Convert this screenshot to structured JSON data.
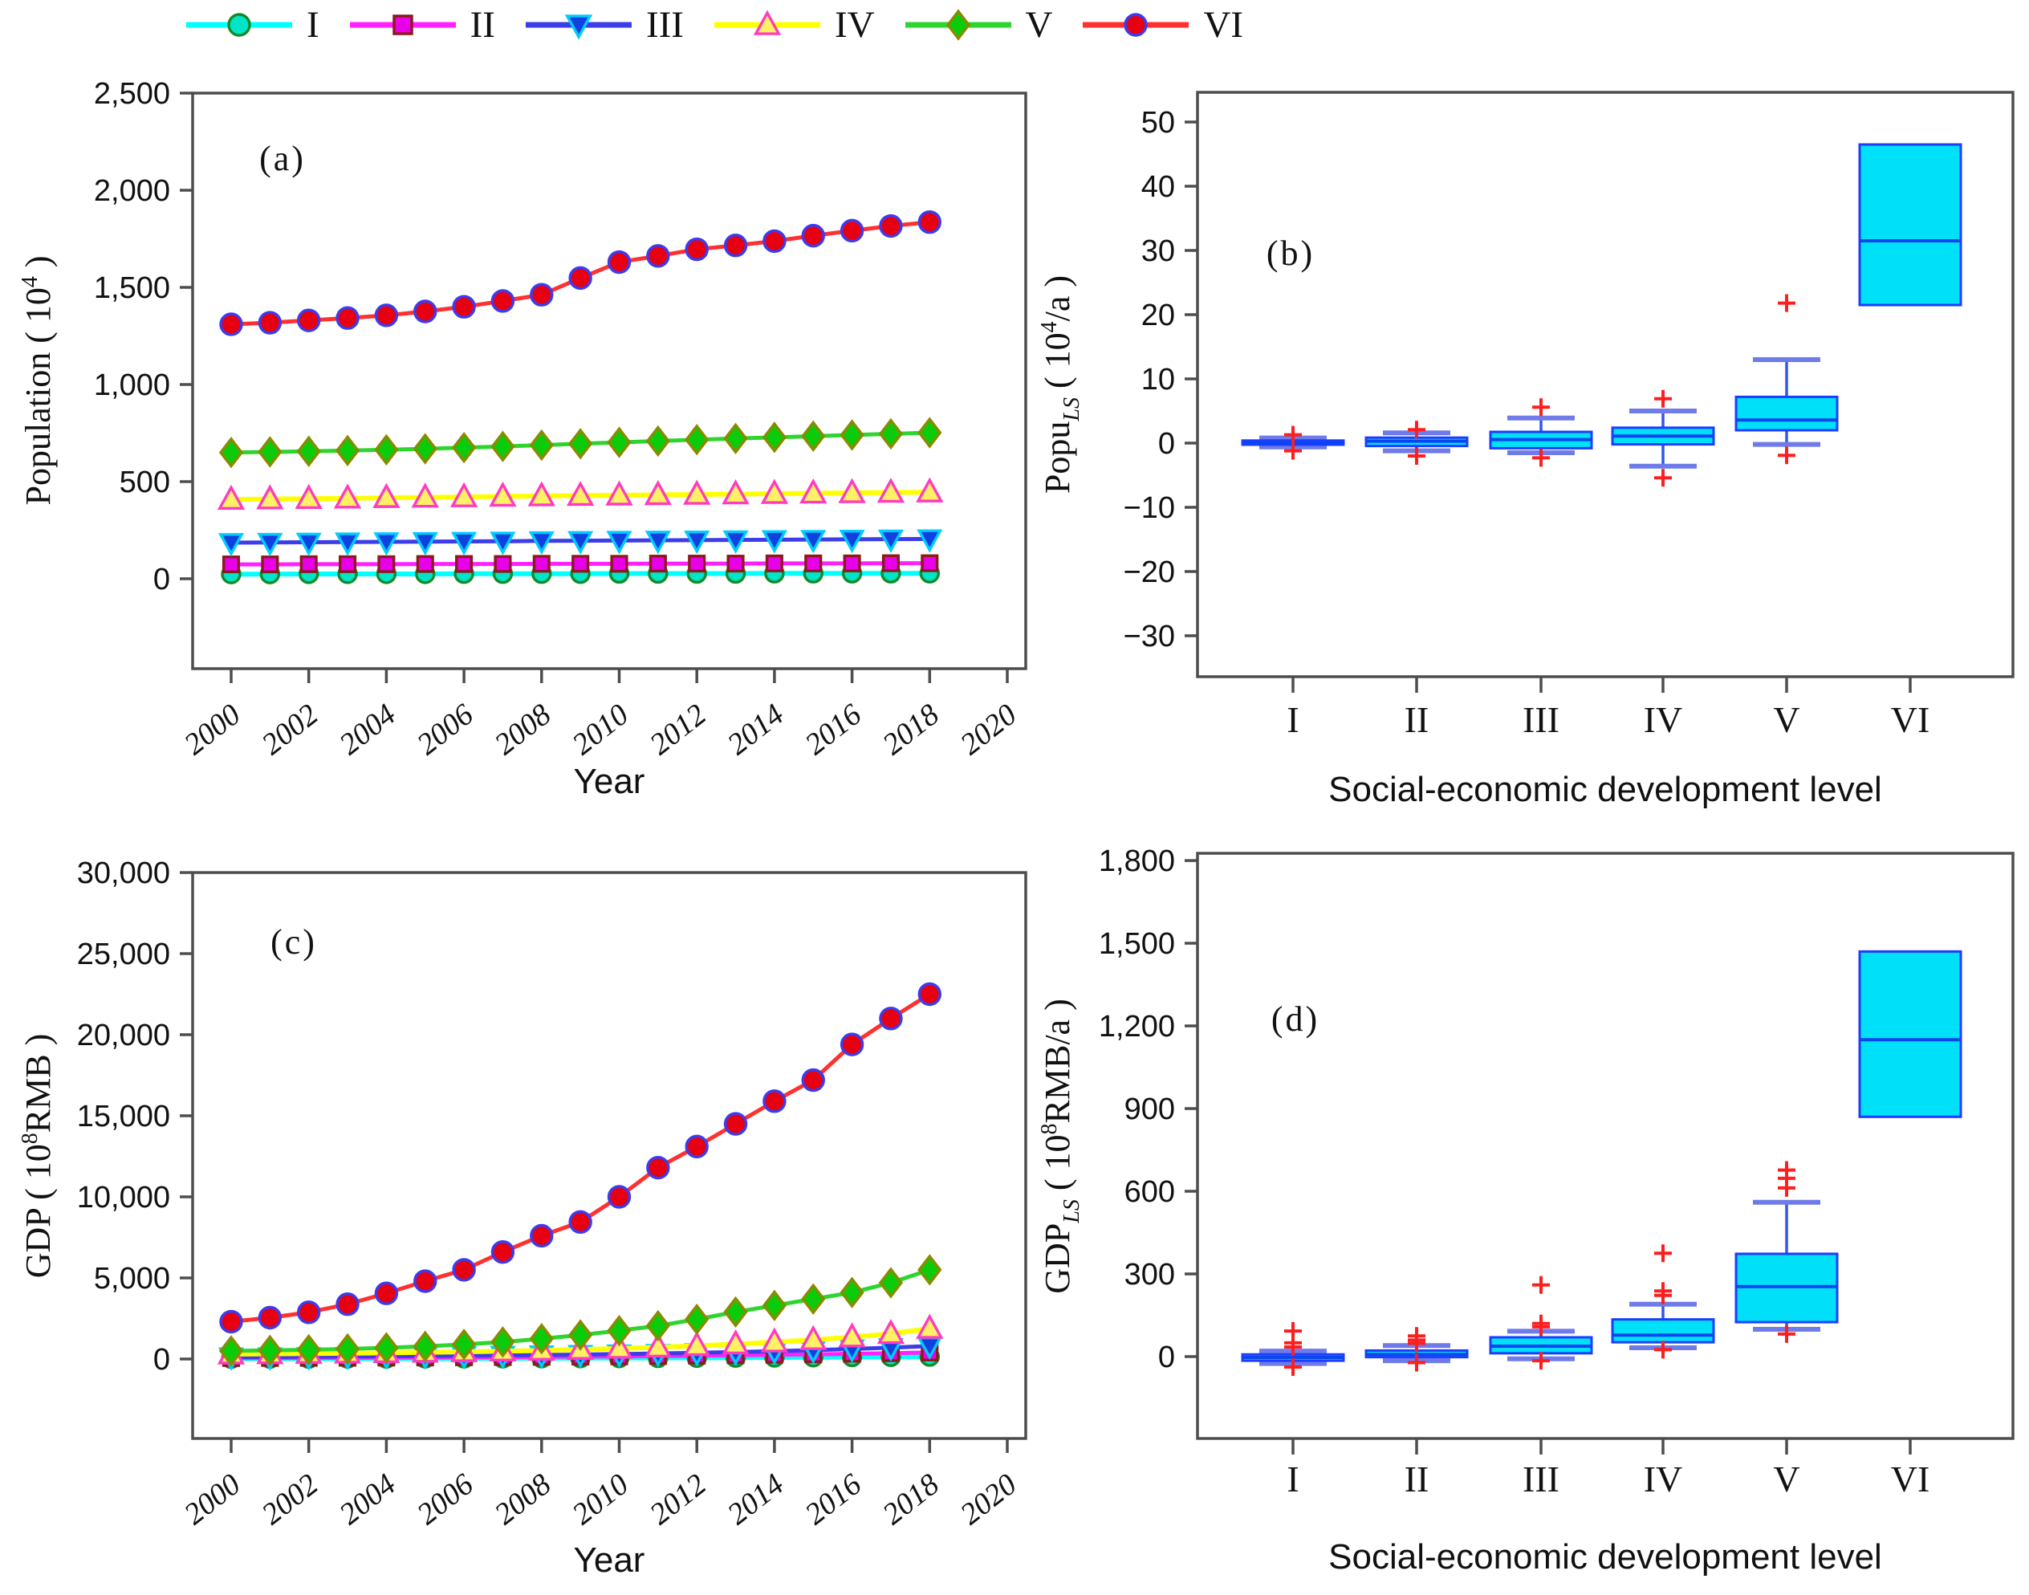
{
  "legend": {
    "items": [
      "I",
      "II",
      "III",
      "IV",
      "V",
      "VI"
    ]
  },
  "colors": {
    "axis": "#4d4d4d",
    "box_fill": "#00e0f8",
    "box_edge": "#1e3cff",
    "box_median": "#0a46f0",
    "whisker": "#3355f0",
    "whisker_cap": "#6e7be8",
    "outlier": "#ff1e1e",
    "series": {
      "I": {
        "line": "#00ffff",
        "fill": "#00e5c8",
        "edge": "#128a28",
        "marker": "circle"
      },
      "II": {
        "line": "#ff22ff",
        "fill": "#e800e8",
        "edge": "#8b1a1a",
        "marker": "square"
      },
      "III": {
        "line": "#3c3ce8",
        "fill": "#1040dd",
        "edge": "#00ccff",
        "marker": "tri-down"
      },
      "IV": {
        "line": "#ffff00",
        "fill": "#fff066",
        "edge": "#ff3bc1",
        "marker": "tri-up"
      },
      "V": {
        "line": "#2fd52f",
        "fill": "#0acc0a",
        "edge": "#8a8a00",
        "marker": "diamond"
      },
      "VI": {
        "line": "#ff3030",
        "fill": "#e60012",
        "edge": "#3c3cee",
        "marker": "circle"
      }
    }
  },
  "chart_data": [
    {
      "id": "a",
      "type": "line",
      "panel_label": "(a)",
      "xlabel": "Year",
      "ylabel": "Population (10⁴)",
      "ylabel_parts": {
        "pre": "Population ( 10",
        "sub": "",
        "mid": "",
        "sup": "4",
        "post": " )"
      },
      "x": [
        2000,
        2001,
        2002,
        2003,
        2004,
        2005,
        2006,
        2007,
        2008,
        2009,
        2010,
        2011,
        2012,
        2013,
        2014,
        2015,
        2016,
        2017,
        2018
      ],
      "xticks": [
        2000,
        2002,
        2004,
        2006,
        2008,
        2010,
        2012,
        2014,
        2016,
        2018,
        2020
      ],
      "xtick_labels": [
        "2000",
        "2002",
        "2004",
        "2006",
        "2008",
        "2010",
        "2012",
        "2014",
        "2016",
        "2018",
        "2020"
      ],
      "yticks": [
        0,
        500,
        1000,
        1500,
        2000,
        2500
      ],
      "ytick_labels": [
        "0",
        "500",
        "1,000",
        "1,500",
        "2,000",
        "2,500"
      ],
      "ylim": [
        -463,
        2500
      ],
      "xlim": [
        2000,
        2020
      ],
      "series": [
        {
          "name": "I",
          "values": [
            24,
            24,
            25,
            25,
            25,
            25,
            26,
            26,
            26,
            26,
            27,
            27,
            27,
            27,
            28,
            28,
            28,
            28,
            28
          ]
        },
        {
          "name": "II",
          "values": [
            74,
            74,
            75,
            75,
            75,
            76,
            76,
            76,
            77,
            77,
            77,
            78,
            78,
            78,
            79,
            79,
            79,
            80,
            80
          ]
        },
        {
          "name": "III",
          "values": [
            186,
            187,
            188,
            189,
            190,
            191,
            192,
            193,
            195,
            196,
            197,
            198,
            199,
            200,
            201,
            202,
            203,
            204,
            205
          ]
        },
        {
          "name": "IV",
          "values": [
            408,
            410,
            412,
            414,
            417,
            419,
            421,
            424,
            426,
            428,
            430,
            432,
            434,
            436,
            438,
            440,
            442,
            444,
            446
          ]
        },
        {
          "name": "V",
          "values": [
            650,
            653,
            656,
            660,
            664,
            669,
            675,
            681,
            688,
            695,
            702,
            709,
            716,
            722,
            728,
            734,
            740,
            746,
            752
          ]
        },
        {
          "name": "VI",
          "values": [
            1310,
            1318,
            1330,
            1342,
            1356,
            1376,
            1400,
            1430,
            1462,
            1548,
            1630,
            1662,
            1696,
            1716,
            1738,
            1766,
            1792,
            1816,
            1836
          ]
        }
      ]
    },
    {
      "id": "b",
      "type": "box",
      "panel_label": "(b)",
      "xlabel": "Social-economic development level",
      "ylabel": "Popuₗₛ (10⁴/a)",
      "ylabel_parts": {
        "pre": "Popu",
        "sub": "LS",
        "mid": " ( 10",
        "sup": "4",
        "post": "/a )"
      },
      "categories": [
        "I",
        "II",
        "III",
        "IV",
        "V",
        "VI"
      ],
      "yticks": [
        -30,
        -20,
        -10,
        0,
        10,
        20,
        30,
        40,
        50
      ],
      "ytick_labels": [
        "−30",
        "−20",
        "−10",
        "0",
        "10",
        "20",
        "30",
        "40",
        "50"
      ],
      "ylim": [
        -36.4,
        54.6
      ],
      "boxes": [
        {
          "category": "I",
          "whislo": -0.6,
          "q1": -0.25,
          "median": 0.05,
          "q3": 0.4,
          "whishi": 0.8,
          "outliers": [
            1.3,
            -1.2
          ]
        },
        {
          "category": "II",
          "whislo": -1.2,
          "q1": -0.45,
          "median": 0.3,
          "q3": 0.85,
          "whishi": 1.6,
          "outliers": [
            2.1,
            -2.0
          ]
        },
        {
          "category": "III",
          "whislo": -1.5,
          "q1": -0.8,
          "median": 0.55,
          "q3": 1.75,
          "whishi": 3.9,
          "outliers": [
            5.6,
            -2.3
          ]
        },
        {
          "category": "IV",
          "whislo": -3.6,
          "q1": -0.2,
          "median": 1.1,
          "q3": 2.4,
          "whishi": 5.0,
          "outliers": [
            6.9,
            -5.4
          ]
        },
        {
          "category": "V",
          "whislo": -0.2,
          "q1": 2.0,
          "median": 3.6,
          "q3": 7.2,
          "whishi": 13.0,
          "outliers": [
            21.8,
            -1.9
          ]
        },
        {
          "category": "VI",
          "whislo": 21.5,
          "q1": 21.5,
          "median": 31.5,
          "q3": 46.5,
          "whishi": 46.5,
          "outliers": []
        }
      ]
    },
    {
      "id": "c",
      "type": "line",
      "panel_label": "(c)",
      "xlabel": "Year",
      "ylabel": "GDP (10⁸RMB)",
      "ylabel_parts": {
        "pre": "GDP ( 10",
        "sub": "",
        "mid": "",
        "sup": "8",
        "post": "RMB )"
      },
      "x": [
        2000,
        2001,
        2002,
        2003,
        2004,
        2005,
        2006,
        2007,
        2008,
        2009,
        2010,
        2011,
        2012,
        2013,
        2014,
        2015,
        2016,
        2017,
        2018
      ],
      "xticks": [
        2000,
        2002,
        2004,
        2006,
        2008,
        2010,
        2012,
        2014,
        2016,
        2018,
        2020
      ],
      "xtick_labels": [
        "2000",
        "2002",
        "2004",
        "2006",
        "2008",
        "2010",
        "2012",
        "2014",
        "2016",
        "2018",
        "2020"
      ],
      "yticks": [
        0,
        5000,
        10000,
        15000,
        20000,
        25000,
        30000
      ],
      "ytick_labels": [
        "0",
        "5,000",
        "10,000",
        "15,000",
        "20,000",
        "25,000",
        "30,000"
      ],
      "ylim": [
        -4900,
        30000
      ],
      "xlim": [
        2000,
        2020
      ],
      "series": [
        {
          "name": "I",
          "values": [
            20,
            22,
            24,
            27,
            30,
            34,
            38,
            43,
            48,
            54,
            61,
            69,
            78,
            88,
            99,
            110,
            122,
            135,
            150
          ]
        },
        {
          "name": "II",
          "values": [
            60,
            65,
            71,
            78,
            86,
            95,
            106,
            118,
            132,
            148,
            166,
            186,
            209,
            234,
            262,
            292,
            324,
            360,
            400
          ]
        },
        {
          "name": "III",
          "values": [
            120,
            130,
            141,
            154,
            168,
            184,
            203,
            224,
            248,
            275,
            306,
            342,
            383,
            430,
            484,
            545,
            616,
            700,
            800
          ]
        },
        {
          "name": "IV",
          "values": [
            300,
            315,
            333,
            354,
            379,
            408,
            442,
            482,
            529,
            584,
            649,
            725,
            814,
            918,
            1040,
            1183,
            1350,
            1560,
            1880
          ]
        },
        {
          "name": "V",
          "values": [
            500,
            530,
            570,
            620,
            690,
            780,
            900,
            1050,
            1250,
            1480,
            1750,
            2050,
            2450,
            2900,
            3300,
            3700,
            4100,
            4700,
            5500
          ]
        },
        {
          "name": "VI",
          "values": [
            2300,
            2550,
            2880,
            3380,
            4050,
            4800,
            5500,
            6600,
            7600,
            8450,
            10000,
            11800,
            13100,
            14500,
            15900,
            17200,
            19400,
            21000,
            22500
          ]
        }
      ]
    },
    {
      "id": "d",
      "type": "box",
      "panel_label": "(d)",
      "xlabel": "Social-economic development level",
      "ylabel": "GDPₗₛ (10⁸RMB/a)",
      "ylabel_parts": {
        "pre": "GDP",
        "sub": "LS",
        "mid": " ( 10",
        "sup": "8",
        "post": "RMB/a )"
      },
      "categories": [
        "I",
        "II",
        "III",
        "IV",
        "V",
        "VI"
      ],
      "yticks": [
        0,
        300,
        600,
        900,
        1200,
        1500,
        1800
      ],
      "ytick_labels": [
        "0",
        "300",
        "600",
        "900",
        "1,200",
        "1,500",
        "1,800"
      ],
      "ylim": [
        -297,
        1826
      ],
      "boxes": [
        {
          "category": "I",
          "whislo": -25,
          "q1": -15,
          "median": -3,
          "q3": 8,
          "whishi": 20,
          "outliers": [
            93,
            50,
            35,
            -38
          ]
        },
        {
          "category": "II",
          "whislo": -15,
          "q1": -2,
          "median": 8,
          "q3": 22,
          "whishi": 40,
          "outliers": [
            75,
            60,
            48,
            -22
          ]
        },
        {
          "category": "III",
          "whislo": -8,
          "q1": 12,
          "median": 38,
          "q3": 70,
          "whishi": 92,
          "outliers": [
            260,
            120,
            108,
            -15
          ]
        },
        {
          "category": "IV",
          "whislo": 32,
          "q1": 52,
          "median": 78,
          "q3": 135,
          "whishi": 190,
          "outliers": [
            375,
            238,
            222,
            25
          ]
        },
        {
          "category": "V",
          "whislo": 99,
          "q1": 125,
          "median": 254,
          "q3": 373,
          "whishi": 560,
          "outliers": [
            677,
            647,
            612,
            82
          ]
        },
        {
          "category": "VI",
          "whislo": 870,
          "q1": 870,
          "median": 1150,
          "q3": 1470,
          "whishi": 1470,
          "outliers": []
        }
      ]
    }
  ]
}
